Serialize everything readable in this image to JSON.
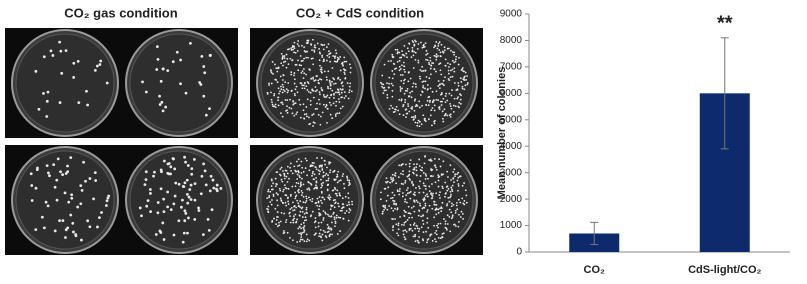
{
  "panels": [
    {
      "title": "CO₂ gas condition"
    },
    {
      "title": "CO₂ + CdS condition"
    }
  ],
  "chart_data": {
    "type": "bar",
    "y_label": "Mean number of colonies",
    "categories": [
      "CO₂",
      "CdS-light/CO₂"
    ],
    "values": [
      700,
      6000
    ],
    "errors": [
      420,
      2100
    ],
    "color": "#0c2a6c",
    "annotations": [
      {
        "text": "**",
        "category": 1
      }
    ],
    "ylim": [
      0,
      9000
    ],
    "yticks": [
      0,
      1000,
      2000,
      3000,
      4000,
      5000,
      6000,
      7000,
      8000,
      9000
    ]
  }
}
